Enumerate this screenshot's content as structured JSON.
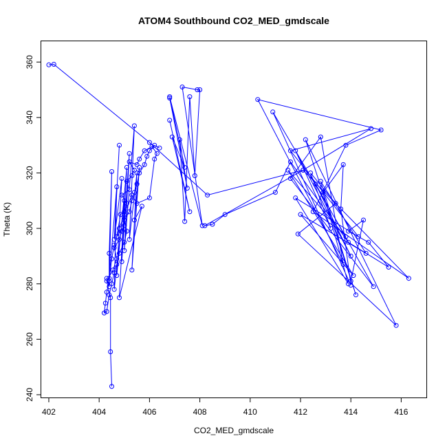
{
  "chart_data": {
    "type": "line",
    "title": "ATOM4 Southbound CO2_MED_gmdscale",
    "xlabel": "CO2_MED_gmdscale",
    "ylabel": "Theta (K)",
    "xlim": [
      401.7,
      417.0
    ],
    "ylim": [
      239.0,
      367.5
    ],
    "x_ticks": [
      402,
      404,
      406,
      408,
      410,
      412,
      414,
      416
    ],
    "y_ticks": [
      240,
      260,
      280,
      300,
      320,
      340,
      360
    ],
    "markers": "open-circle",
    "grid": false,
    "color": "#0000ff",
    "series": [
      {
        "points": [
          [
            402.0,
            359.0
          ],
          [
            402.2,
            359.2
          ],
          [
            406.0,
            331.0
          ],
          [
            408.3,
            312.0
          ],
          [
            412.1,
            321.0
          ],
          [
            414.8,
            336.0
          ],
          [
            411.6,
            328.0
          ],
          [
            414.3,
            297.0
          ],
          [
            411.8,
            311.0
          ],
          [
            413.9,
            280.0
          ],
          [
            412.9,
            313.0
          ],
          [
            413.7,
            323.0
          ],
          [
            413.6,
            307.0
          ],
          [
            414.0,
            279.5
          ],
          [
            410.9,
            342.0
          ],
          [
            413.8,
            297.0
          ],
          [
            411.5,
            321.0
          ],
          [
            414.1,
            283.0
          ],
          [
            412.0,
            305.0
          ],
          [
            414.6,
            291.0
          ],
          [
            412.8,
            317.0
          ],
          [
            414.2,
            276.0
          ],
          [
            412.2,
            332.0
          ],
          [
            415.8,
            265.0
          ],
          [
            411.9,
            298.0
          ],
          [
            413.4,
            309.0
          ],
          [
            412.4,
            320.0
          ],
          [
            413.2,
            300.0
          ],
          [
            411.8,
            328.0
          ],
          [
            414.0,
            290.0
          ],
          [
            412.6,
            316.0
          ],
          [
            414.9,
            279.0
          ],
          [
            411.6,
            318.0
          ],
          [
            412.8,
            333.0
          ],
          [
            413.7,
            287.0
          ],
          [
            410.3,
            346.5
          ],
          [
            415.2,
            335.5
          ],
          [
            413.8,
            330.0
          ],
          [
            412.5,
            306.0
          ],
          [
            416.3,
            282.0
          ],
          [
            412.1,
            321.0
          ],
          [
            408.2,
            301.0
          ],
          [
            408.5,
            301.5
          ],
          [
            409.0,
            305.0
          ],
          [
            411.0,
            313.0
          ],
          [
            411.6,
            324.0
          ],
          [
            413.9,
            295.0
          ],
          [
            415.5,
            286.0
          ],
          [
            414.7,
            295.0
          ],
          [
            413.9,
            299.0
          ],
          [
            414.5,
            303.0
          ],
          [
            414.0,
            281.0
          ]
        ]
      },
      {
        "points": [
          [
            404.5,
            243.0
          ],
          [
            404.45,
            255.5
          ],
          [
            404.45,
            275.0
          ],
          [
            404.3,
            281.0
          ],
          [
            404.55,
            285.0
          ],
          [
            404.7,
            289.0
          ],
          [
            404.6,
            293.0
          ],
          [
            404.8,
            296.0
          ],
          [
            404.9,
            299.0
          ],
          [
            405.0,
            301.0
          ],
          [
            404.7,
            297.0
          ],
          [
            404.85,
            305.0
          ],
          [
            405.0,
            306.0
          ],
          [
            405.1,
            309.0
          ],
          [
            404.9,
            312.0
          ],
          [
            405.2,
            314.0
          ],
          [
            405.1,
            317.0
          ],
          [
            405.3,
            319.0
          ],
          [
            405.4,
            321.0
          ],
          [
            405.2,
            324.0
          ],
          [
            405.5,
            323.0
          ],
          [
            405.6,
            325.0
          ],
          [
            405.8,
            328.0
          ],
          [
            406.1,
            329.5
          ],
          [
            406.3,
            327.0
          ],
          [
            406.2,
            325.0
          ],
          [
            406.0,
            311.0
          ],
          [
            405.5,
            309.0
          ],
          [
            405.3,
            312.0
          ],
          [
            405.0,
            305.0
          ],
          [
            404.8,
            300.0
          ],
          [
            404.6,
            294.0
          ],
          [
            404.5,
            289.0
          ],
          [
            404.4,
            281.0
          ],
          [
            404.3,
            277.0
          ],
          [
            404.25,
            273.0
          ],
          [
            404.2,
            269.5
          ],
          [
            404.3,
            270.0
          ],
          [
            404.4,
            276.0
          ],
          [
            404.5,
            280.0
          ],
          [
            404.6,
            284.0
          ],
          [
            404.7,
            287.0
          ],
          [
            404.8,
            291.0
          ],
          [
            405.0,
            295.0
          ],
          [
            405.1,
            299.0
          ],
          [
            405.0,
            303.0
          ],
          [
            405.2,
            306.0
          ],
          [
            405.3,
            310.0
          ],
          [
            405.4,
            313.0
          ],
          [
            405.5,
            316.0
          ],
          [
            405.6,
            320.0
          ],
          [
            405.8,
            323.0
          ],
          [
            405.9,
            326.0
          ],
          [
            406.0,
            328.0
          ],
          [
            406.2,
            330.0
          ],
          [
            406.4,
            329.0
          ]
        ]
      },
      {
        "points": [
          [
            404.8,
            330.0
          ],
          [
            404.6,
            296.0
          ],
          [
            404.9,
            318.0
          ],
          [
            404.7,
            283.0
          ],
          [
            405.1,
            322.0
          ],
          [
            404.9,
            288.0
          ],
          [
            405.2,
            327.0
          ],
          [
            405.0,
            292.0
          ],
          [
            405.4,
            337.0
          ],
          [
            405.2,
            296.0
          ],
          [
            405.5,
            320.0
          ],
          [
            405.3,
            285.0
          ],
          [
            405.6,
            322.0
          ],
          [
            405.4,
            303.0
          ],
          [
            405.7,
            308.0
          ],
          [
            404.8,
            275.0
          ],
          [
            405.0,
            310.0
          ],
          [
            404.6,
            278.0
          ],
          [
            404.7,
            315.0
          ],
          [
            404.4,
            282.0
          ],
          [
            404.4,
            291.0
          ],
          [
            404.5,
            320.5
          ],
          [
            404.4,
            279.0
          ],
          [
            404.3,
            282.0
          ]
        ]
      },
      {
        "points": [
          [
            406.8,
            339.0
          ],
          [
            407.6,
            306.0
          ],
          [
            406.9,
            333.0
          ],
          [
            407.4,
            322.0
          ],
          [
            406.8,
            347.5
          ],
          [
            408.1,
            301.0
          ],
          [
            407.3,
            351.0
          ],
          [
            407.9,
            350.0
          ],
          [
            408.0,
            350.0
          ],
          [
            407.8,
            319.0
          ],
          [
            407.6,
            347.5
          ],
          [
            407.4,
            302.5
          ],
          [
            407.2,
            332.0
          ],
          [
            407.5,
            314.5
          ],
          [
            406.8,
            347.0
          ]
        ]
      }
    ]
  }
}
